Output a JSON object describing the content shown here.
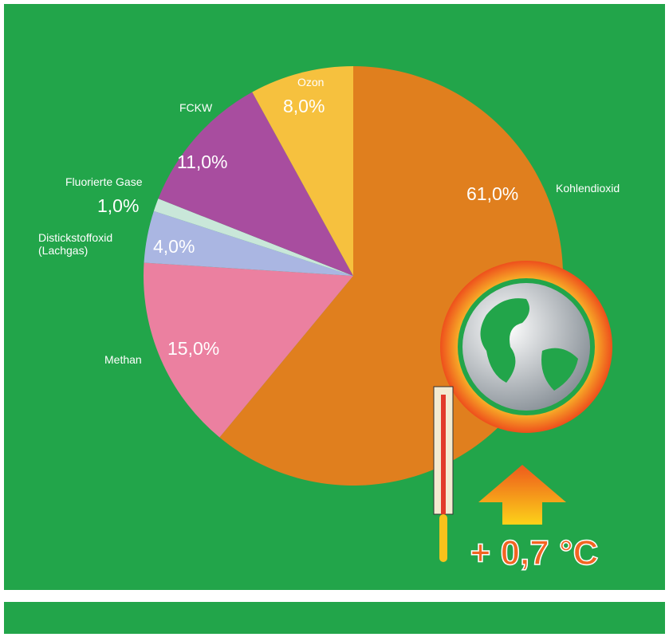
{
  "chart_data": {
    "type": "pie",
    "categories": [
      "Kohlendioxid",
      "Methan",
      "Distickstoffoxid\n(Lachgas)",
      "Fluorierte Gase",
      "FCKW",
      "Ozon"
    ],
    "values": [
      61,
      15,
      4,
      1,
      11,
      8
    ],
    "value_labels": [
      "61,0%",
      "15,0%",
      "4,0%",
      "1,0%",
      "11,0%",
      "8,0%"
    ],
    "colors": [
      "#e07f1e",
      "#eb80a0",
      "#aab6e2",
      "#c9e7d9",
      "#a84d9f",
      "#f6c13e"
    ],
    "annotation": "+ 0,7 °C"
  }
}
